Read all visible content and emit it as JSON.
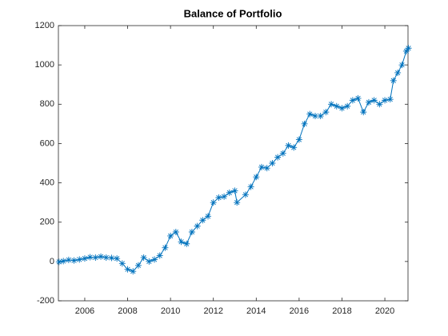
{
  "chart_data": {
    "type": "line",
    "title": "Balance of Portfolio",
    "x": [
      2004.8,
      2005.0,
      2005.25,
      2005.5,
      2005.75,
      2006.0,
      2006.25,
      2006.5,
      2006.75,
      2007.0,
      2007.25,
      2007.5,
      2007.75,
      2008.0,
      2008.25,
      2008.5,
      2008.75,
      2009.0,
      2009.25,
      2009.5,
      2009.75,
      2010.0,
      2010.25,
      2010.5,
      2010.75,
      2011.0,
      2011.25,
      2011.5,
      2011.75,
      2012.0,
      2012.25,
      2012.5,
      2012.75,
      2013.0,
      2013.1,
      2013.5,
      2013.75,
      2014.0,
      2014.25,
      2014.5,
      2014.75,
      2015.0,
      2015.25,
      2015.5,
      2015.75,
      2016.0,
      2016.25,
      2016.5,
      2016.75,
      2017.0,
      2017.25,
      2017.5,
      2017.75,
      2018.0,
      2018.25,
      2018.5,
      2018.75,
      2019.0,
      2019.25,
      2019.5,
      2019.75,
      2020.0,
      2020.25,
      2020.4,
      2020.6,
      2020.8,
      2021.0,
      2021.1
    ],
    "series": [
      {
        "color": "#0072bd",
        "values": [
          -2,
          2,
          8,
          5,
          10,
          15,
          22,
          20,
          25,
          20,
          18,
          15,
          -10,
          -40,
          -50,
          -20,
          20,
          0,
          10,
          30,
          70,
          130,
          150,
          100,
          90,
          150,
          180,
          210,
          230,
          300,
          325,
          330,
          350,
          360,
          300,
          340,
          380,
          430,
          480,
          475,
          500,
          530,
          550,
          590,
          580,
          620,
          700,
          750,
          740,
          740,
          760,
          800,
          790,
          780,
          790,
          820,
          830,
          760,
          810,
          820,
          800,
          820,
          825,
          920,
          960,
          1000,
          1070,
          1085
        ]
      }
    ],
    "xlim": [
      2004.77,
      2021.08
    ],
    "xticks": [
      2006,
      2008,
      2010,
      2012,
      2014,
      2016,
      2018,
      2020
    ],
    "ylim": [
      -200,
      1200
    ],
    "yticks": [
      -200,
      0,
      200,
      400,
      600,
      800,
      1000,
      1200
    ],
    "marker": "asterisk"
  }
}
